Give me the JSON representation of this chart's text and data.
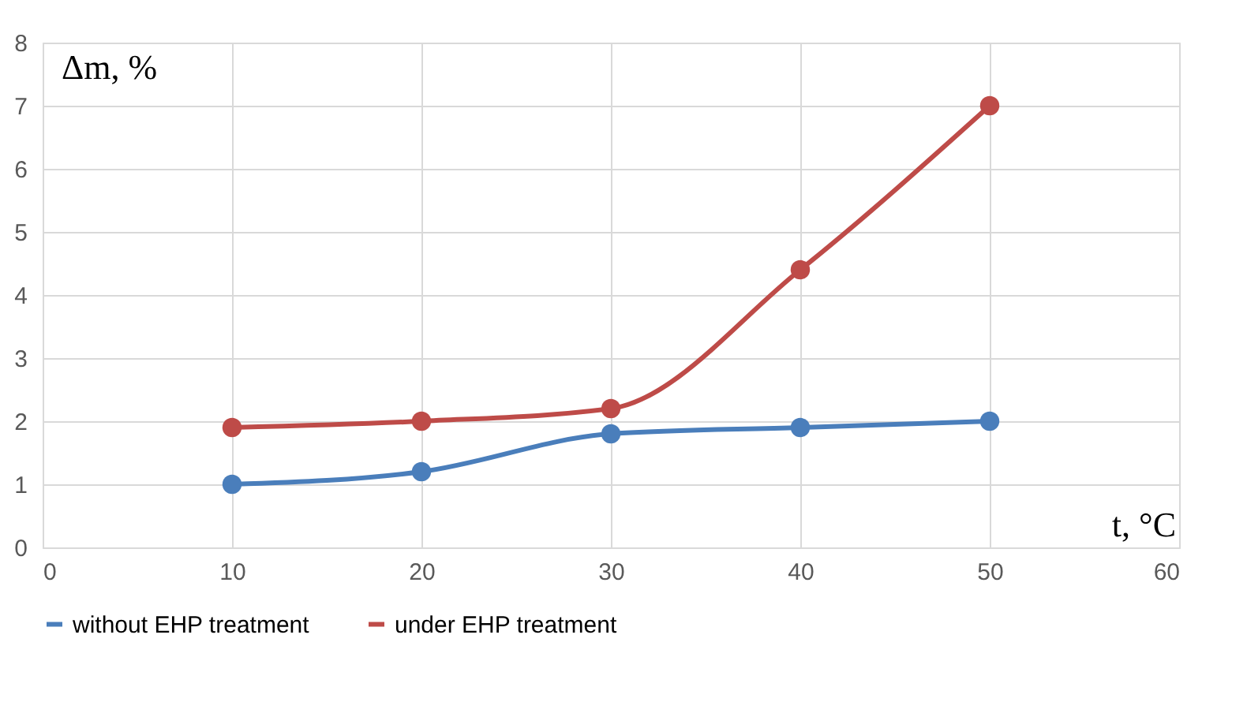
{
  "chart_data": {
    "type": "line",
    "xlabel": "t, °C",
    "ylabel": "Δm, %",
    "x": [
      10,
      20,
      30,
      40,
      50
    ],
    "series": [
      {
        "name": "without EHP treatment",
        "color": "#4a7ebb",
        "values": [
          1,
          1.2,
          1.8,
          1.9,
          2
        ]
      },
      {
        "name": "under EHP treatment",
        "color": "#be4b48",
        "values": [
          1.9,
          2.0,
          2.2,
          4.4,
          7.0
        ]
      }
    ],
    "xlim": [
      0,
      60
    ],
    "xticks": [
      0,
      10,
      20,
      30,
      40,
      50,
      60
    ],
    "ylim": [
      0,
      8
    ],
    "yticks": [
      0,
      1,
      2,
      3,
      4,
      5,
      6,
      7,
      8
    ],
    "grid": true,
    "legend": "bottom",
    "marker": "circle",
    "line_style": "solid"
  }
}
